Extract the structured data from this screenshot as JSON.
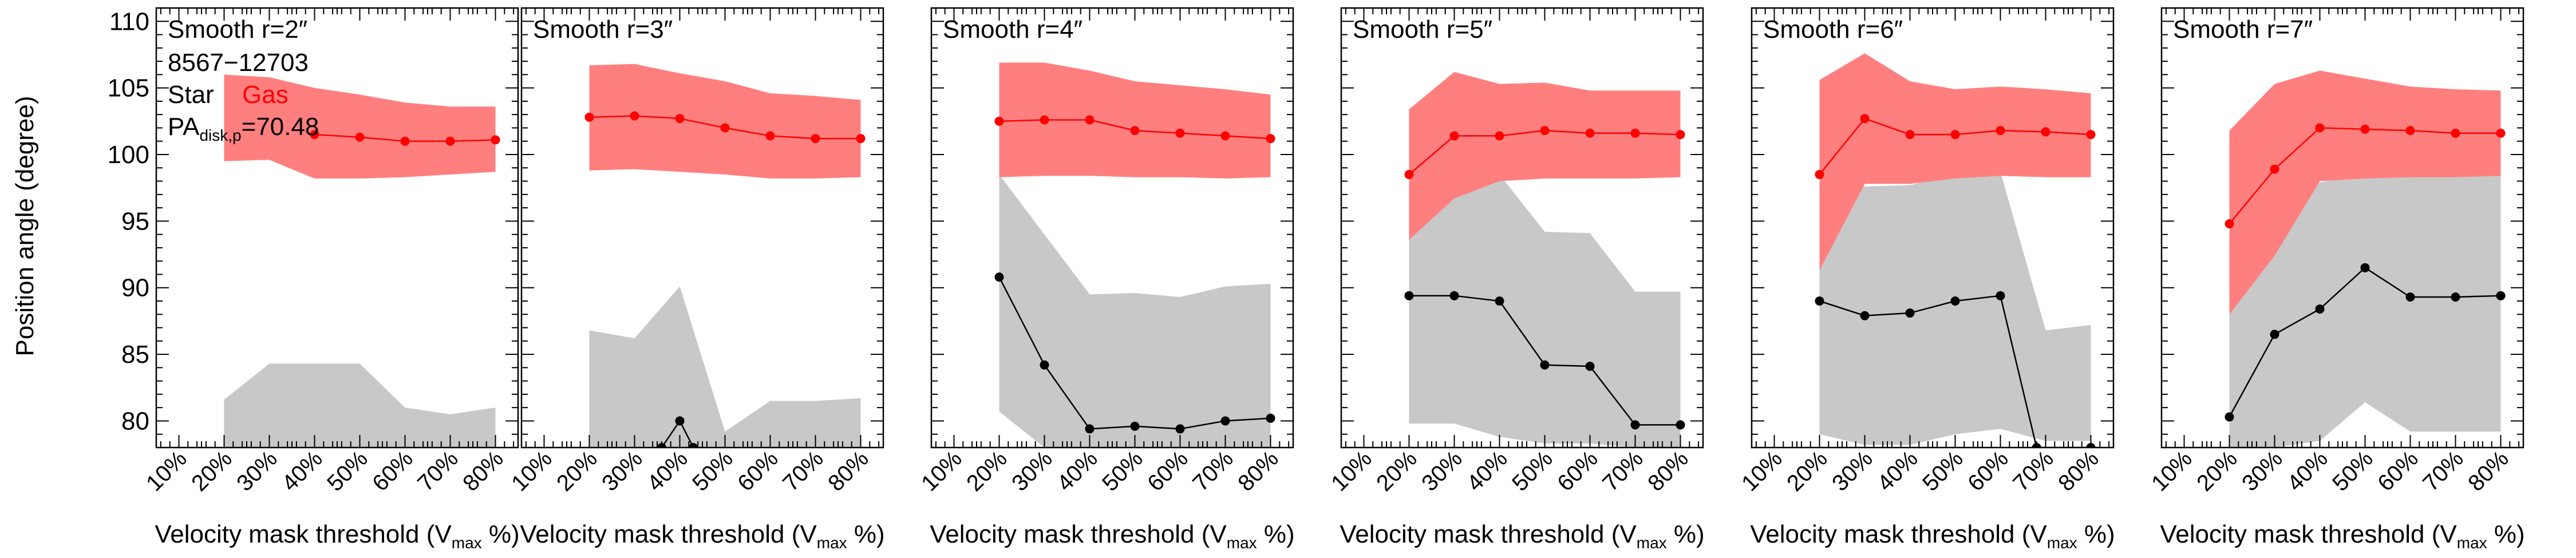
{
  "chart_data": {
    "type": "line",
    "ylabel": "Position angle (degree)",
    "xlabel_main": "Velocity mask threshold (V",
    "xlabel_sub": "max",
    "xlabel_end": " %)",
    "xlim": [
      5,
      85
    ],
    "ylim": [
      78,
      111
    ],
    "yticks": [
      80,
      85,
      90,
      95,
      100,
      105,
      110
    ],
    "xticks": [
      "10%",
      "20%",
      "30%",
      "40%",
      "50%",
      "60%",
      "70%",
      "80%"
    ],
    "legend": {
      "id": "8567−12703",
      "star": "Star",
      "gas": "Gas",
      "pa_prefix": "PA",
      "pa_sub": "disk,p",
      "pa_value": "=70.48"
    },
    "colors": {
      "gas": "#ff0000",
      "gas_band": "#ff7f7f",
      "star": "#000000",
      "star_band": "#c8c8c8"
    },
    "panels": [
      {
        "title": "Smooth r=2″",
        "gas": {
          "x": [
            40,
            50,
            60,
            70,
            80
          ],
          "y": [
            101.5,
            101.3,
            101.0,
            101.0,
            101.1
          ]
        },
        "gas_band": {
          "x": [
            20,
            30,
            40,
            50,
            60,
            70,
            80
          ],
          "lo": [
            99.5,
            99.6,
            98.2,
            98.2,
            98.3,
            98.5,
            98.7
          ],
          "hi": [
            106,
            105.8,
            105,
            104.5,
            103.9,
            103.6,
            103.6
          ]
        },
        "star": {
          "x": [],
          "y": []
        },
        "star_band": {
          "x": [
            20,
            30,
            40,
            50,
            60,
            70,
            80
          ],
          "lo": [
            78,
            78,
            78,
            78,
            78,
            78,
            78
          ],
          "hi": [
            81.6,
            84.3,
            84.3,
            84.3,
            81,
            80.5,
            81
          ]
        }
      },
      {
        "title": "Smooth r=3″",
        "gas": {
          "x": [
            20,
            30,
            40,
            50,
            60,
            70,
            80
          ],
          "y": [
            102.8,
            102.9,
            102.7,
            102.0,
            101.4,
            101.2,
            101.2
          ]
        },
        "gas_band": {
          "x": [
            20,
            30,
            40,
            50,
            60,
            70,
            80
          ],
          "lo": [
            98.8,
            98.9,
            98.7,
            98.5,
            98.2,
            98.2,
            98.3
          ],
          "hi": [
            106.7,
            106.8,
            106.1,
            105.5,
            104.6,
            104.4,
            104.1
          ]
        },
        "star": {
          "x": [
            36,
            40,
            43
          ],
          "y": [
            78,
            80,
            78
          ]
        },
        "star_band": {
          "x": [
            20,
            30,
            40,
            50,
            60,
            70,
            80
          ],
          "lo": [
            78,
            78,
            78,
            78,
            78,
            78,
            78
          ],
          "hi": [
            86.8,
            86.2,
            90.1,
            79.2,
            81.5,
            81.5,
            81.7
          ]
        }
      },
      {
        "title": "Smooth r=4″",
        "gas": {
          "x": [
            20,
            30,
            40,
            50,
            60,
            70,
            80
          ],
          "y": [
            102.5,
            102.6,
            102.6,
            101.8,
            101.6,
            101.4,
            101.2
          ]
        },
        "gas_band": {
          "x": [
            20,
            30,
            40,
            50,
            60,
            70,
            80
          ],
          "lo": [
            98.3,
            98.4,
            98.4,
            98.3,
            98.3,
            98.2,
            98.3
          ],
          "hi": [
            106.9,
            106.9,
            106.3,
            105.5,
            105.2,
            104.9,
            104.5
          ]
        },
        "star": {
          "x": [
            20,
            30,
            40,
            50,
            60,
            70,
            80
          ],
          "y": [
            90.8,
            84.2,
            79.4,
            79.6,
            79.4,
            80.0,
            80.2
          ]
        },
        "star_band": {
          "x": [
            20,
            30,
            40,
            50,
            60,
            70,
            80
          ],
          "lo": [
            80.7,
            78,
            78,
            78,
            78,
            78,
            78
          ],
          "hi": [
            98.5,
            94,
            89.5,
            89.6,
            89.3,
            90.1,
            90.3
          ]
        }
      },
      {
        "title": "Smooth r=5″",
        "gas": {
          "x": [
            20,
            30,
            40,
            50,
            60,
            70,
            80
          ],
          "y": [
            98.5,
            101.4,
            101.4,
            101.8,
            101.6,
            101.6,
            101.5
          ]
        },
        "gas_band": {
          "x": [
            20,
            30,
            40,
            50,
            60,
            70,
            80
          ],
          "lo": [
            93.6,
            96.7,
            98.0,
            98.2,
            98.2,
            98.2,
            98.3
          ],
          "hi": [
            103.4,
            106.2,
            105.3,
            105.4,
            104.8,
            104.8,
            104.8
          ]
        },
        "star": {
          "x": [
            20,
            30,
            40,
            50,
            60,
            70,
            80
          ],
          "y": [
            89.4,
            89.4,
            89.0,
            84.2,
            84.1,
            79.7,
            79.7
          ]
        },
        "star_band": {
          "x": [
            20,
            30,
            40,
            50,
            60,
            70,
            80
          ],
          "lo": [
            79.8,
            79.8,
            78.8,
            78.3,
            78.3,
            78,
            78
          ],
          "hi": [
            99.3,
            99.3,
            98.5,
            94.2,
            94.1,
            89.7,
            89.7
          ]
        }
      },
      {
        "title": "Smooth r=6″",
        "gas": {
          "x": [
            20,
            30,
            40,
            50,
            60,
            70,
            80
          ],
          "y": [
            98.5,
            102.7,
            101.5,
            101.5,
            101.8,
            101.7,
            101.5
          ]
        },
        "gas_band": {
          "x": [
            20,
            30,
            40,
            50,
            60,
            70,
            80
          ],
          "lo": [
            91.3,
            97.8,
            97.8,
            98.2,
            98.4,
            98.3,
            98.3
          ],
          "hi": [
            105.6,
            107.6,
            105.5,
            104.9,
            105.1,
            104.9,
            104.6
          ]
        },
        "star": {
          "x": [
            20,
            30,
            40,
            50,
            60,
            68,
            80
          ],
          "y": [
            89.0,
            87.9,
            88.1,
            89.0,
            89.4,
            78,
            78
          ]
        },
        "star_band": {
          "x": [
            20,
            30,
            40,
            50,
            60,
            70,
            80
          ],
          "lo": [
            79,
            78.2,
            78.2,
            79,
            79.4,
            78.5,
            78.5
          ],
          "hi": [
            98.8,
            97.6,
            97.7,
            98.5,
            98.7,
            86.8,
            87.2
          ]
        }
      },
      {
        "title": "Smooth r=7″",
        "gas": {
          "x": [
            20,
            30,
            40,
            50,
            60,
            70,
            80
          ],
          "y": [
            94.8,
            98.9,
            102.0,
            101.9,
            101.8,
            101.6,
            101.6
          ]
        },
        "gas_band": {
          "x": [
            20,
            30,
            40,
            50,
            60,
            70,
            80
          ],
          "lo": [
            88.0,
            92.4,
            98.0,
            98.2,
            98.3,
            98.3,
            98.4
          ],
          "hi": [
            101.8,
            105.3,
            106.3,
            105.7,
            105.1,
            104.9,
            104.8
          ]
        },
        "star": {
          "x": [
            20,
            30,
            40,
            50,
            60,
            70,
            80
          ],
          "y": [
            80.3,
            86.5,
            88.4,
            91.5,
            89.3,
            89.3,
            89.4
          ]
        },
        "star_band": {
          "x": [
            20,
            30,
            40,
            50,
            60,
            70,
            80
          ],
          "lo": [
            78,
            78,
            78.5,
            81.4,
            79.2,
            79.2,
            79.2
          ],
          "hi": [
            88,
            96.7,
            97.9,
            98.6,
            98.5,
            98.5,
            98.4
          ]
        }
      }
    ]
  }
}
